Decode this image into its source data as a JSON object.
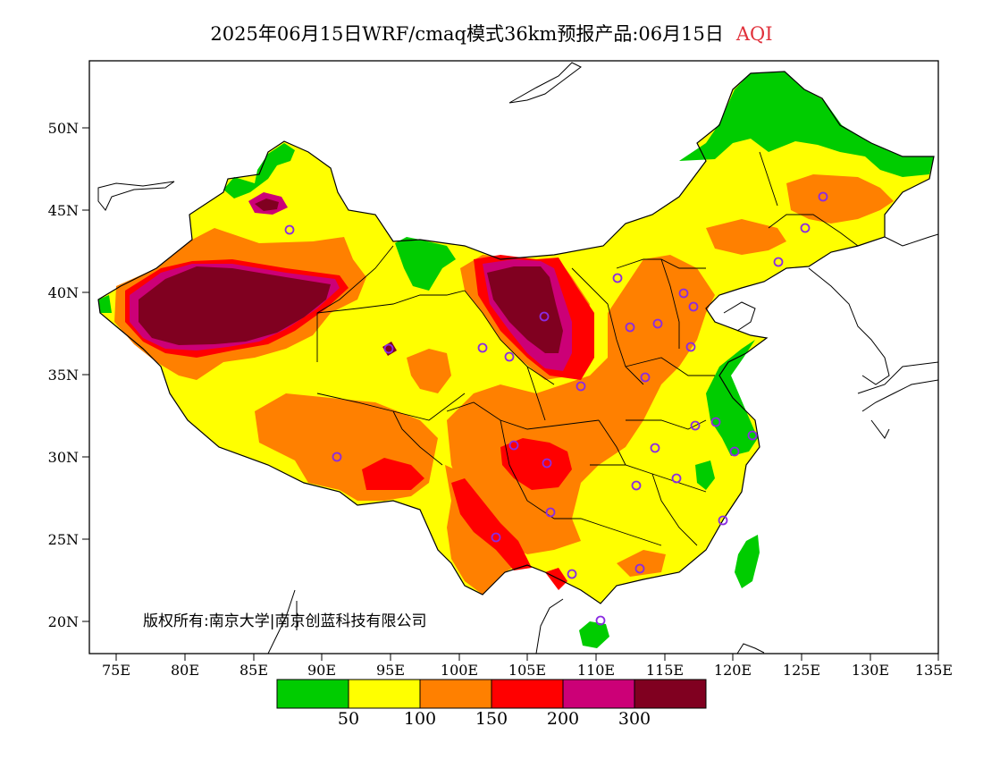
{
  "header": {
    "title": "2025年06月15日WRF/cmaq模式36km预报产品:06月15日",
    "parameter": "AQI"
  },
  "axes": {
    "y_ticks": [
      "50N",
      "45N",
      "40N",
      "35N",
      "30N",
      "25N",
      "20N"
    ],
    "x_ticks": [
      "75E",
      "80E",
      "85E",
      "90E",
      "95E",
      "100E",
      "105E",
      "110E",
      "115E",
      "120E",
      "125E",
      "130E",
      "135E"
    ]
  },
  "copyright": {
    "text": "版权所有:南京大学|南京创蓝科技有限公司"
  },
  "legend": {
    "colors": [
      "#00cc00",
      "#ffff00",
      "#ff8000",
      "#ff0000",
      "#cc0077",
      "#800020"
    ],
    "labels": [
      "50",
      "100",
      "150",
      "200",
      "300"
    ]
  },
  "colors": {
    "good": "#00cc00",
    "moderate": "#ffff00",
    "sensitive": "#ff8000",
    "unhealthy": "#ff0000",
    "very_unhealthy": "#cc0077",
    "hazardous": "#800020",
    "station_marker": "#8a2be2"
  }
}
